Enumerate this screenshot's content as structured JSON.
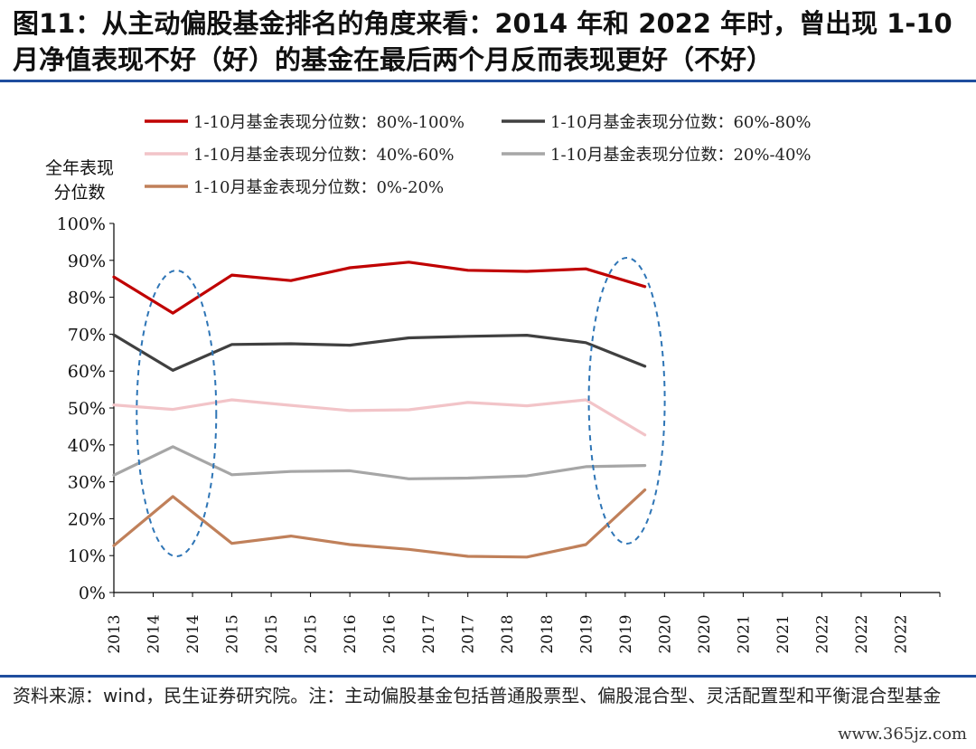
{
  "title": "图11：从主动偏股基金排名的角度来看：2014 年和 2022 年时，曾出现 1-10 月净值表现不好（好）的基金在最后两个月反而表现更好（不好）",
  "source": "资料来源：wind，民生证券研究院。注：主动偏股基金包括普通股票型、偏股混合型、灵活配置型和平衡混合型基金",
  "watermark": "www.365jz.com",
  "colors": {
    "series_80_100": "#c00000",
    "series_60_80": "#404040",
    "series_40_60": "#f2c4c8",
    "series_20_40": "#a6a6a6",
    "series_0_20": "#c0805a",
    "highlight": "#2e75b6",
    "rule": "#1f4e9e"
  },
  "chart_data": {
    "type": "line",
    "ylabel_line1": "全年表现",
    "ylabel_line2": "分位数",
    "ylim": [
      0,
      1
    ],
    "yticks": [
      "0%",
      "10%",
      "20%",
      "30%",
      "40%",
      "50%",
      "60%",
      "70%",
      "80%",
      "90%",
      "100%"
    ],
    "categories": [
      "2013",
      "2014",
      "2014",
      "2015",
      "2015",
      "2015",
      "2016",
      "2016",
      "2017",
      "2017",
      "2018",
      "2018",
      "2019",
      "2019",
      "2020",
      "2020",
      "2021",
      "2021",
      "2022",
      "2022",
      "2022"
    ],
    "legend_placement": "top",
    "highlight_ellipses": [
      "2014",
      "2022"
    ],
    "grid": false,
    "series": [
      {
        "name": "1-10月基金表现分位数：80%-100%",
        "color_key": "series_80_100",
        "points": [
          {
            "i": 0,
            "v": 0.855
          },
          {
            "i": 3,
            "v": 0.757
          },
          {
            "i": 6,
            "v": 0.86
          },
          {
            "i": 9,
            "v": 0.845
          },
          {
            "i": 12,
            "v": 0.88
          },
          {
            "i": 15,
            "v": 0.895
          },
          {
            "i": 18,
            "v": 0.873
          },
          {
            "i": 21,
            "v": 0.87
          },
          {
            "i": 24,
            "v": 0.877
          },
          {
            "i": 27,
            "v": 0.829
          }
        ]
      },
      {
        "name": "1-10月基金表现分位数：60%-80%",
        "color_key": "series_60_80",
        "points": [
          {
            "i": 0,
            "v": 0.698
          },
          {
            "i": 3,
            "v": 0.602
          },
          {
            "i": 6,
            "v": 0.672
          },
          {
            "i": 9,
            "v": 0.674
          },
          {
            "i": 12,
            "v": 0.67
          },
          {
            "i": 15,
            "v": 0.69
          },
          {
            "i": 18,
            "v": 0.694
          },
          {
            "i": 21,
            "v": 0.697
          },
          {
            "i": 24,
            "v": 0.677
          },
          {
            "i": 27,
            "v": 0.613
          }
        ]
      },
      {
        "name": "1-10月基金表现分位数：40%-60%",
        "color_key": "series_40_60",
        "points": [
          {
            "i": 0,
            "v": 0.508
          },
          {
            "i": 3,
            "v": 0.496
          },
          {
            "i": 6,
            "v": 0.522
          },
          {
            "i": 9,
            "v": 0.507
          },
          {
            "i": 12,
            "v": 0.493
          },
          {
            "i": 15,
            "v": 0.495
          },
          {
            "i": 18,
            "v": 0.515
          },
          {
            "i": 21,
            "v": 0.506
          },
          {
            "i": 24,
            "v": 0.522
          },
          {
            "i": 27,
            "v": 0.427
          }
        ]
      },
      {
        "name": "1-10月基金表现分位数：20%-40%",
        "color_key": "series_20_40",
        "points": [
          {
            "i": 0,
            "v": 0.318
          },
          {
            "i": 3,
            "v": 0.395
          },
          {
            "i": 6,
            "v": 0.319
          },
          {
            "i": 9,
            "v": 0.328
          },
          {
            "i": 12,
            "v": 0.33
          },
          {
            "i": 15,
            "v": 0.308
          },
          {
            "i": 18,
            "v": 0.31
          },
          {
            "i": 21,
            "v": 0.316
          },
          {
            "i": 24,
            "v": 0.341
          },
          {
            "i": 27,
            "v": 0.344
          }
        ]
      },
      {
        "name": "1-10月基金表现分位数：0%-20%",
        "color_key": "series_0_20",
        "points": [
          {
            "i": 0,
            "v": 0.127
          },
          {
            "i": 3,
            "v": 0.26
          },
          {
            "i": 6,
            "v": 0.133
          },
          {
            "i": 9,
            "v": 0.153
          },
          {
            "i": 12,
            "v": 0.13
          },
          {
            "i": 15,
            "v": 0.117
          },
          {
            "i": 18,
            "v": 0.098
          },
          {
            "i": 21,
            "v": 0.096
          },
          {
            "i": 24,
            "v": 0.13
          },
          {
            "i": 27,
            "v": 0.278
          }
        ]
      }
    ]
  }
}
